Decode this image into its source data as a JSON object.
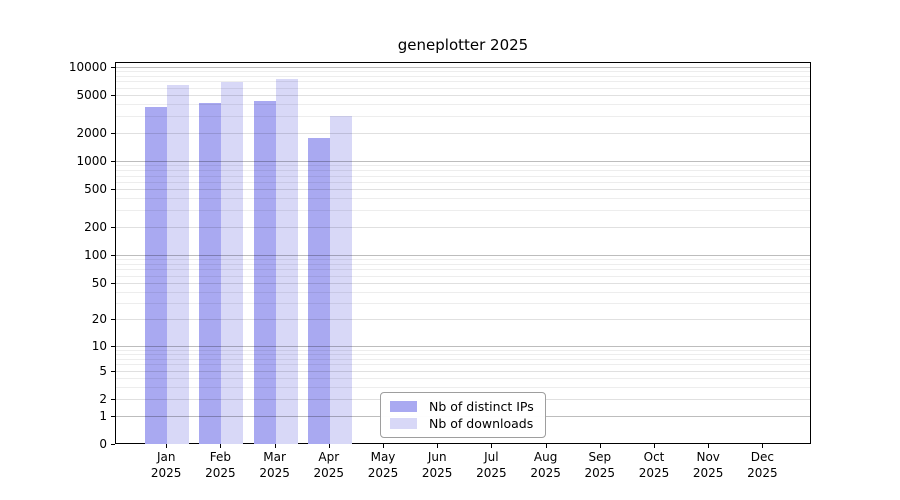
{
  "chart_data": {
    "type": "bar",
    "title": "geneplotter 2025",
    "categories": [
      "Jan",
      "Feb",
      "Mar",
      "Apr",
      "May",
      "Jun",
      "Jul",
      "Aug",
      "Sep",
      "Oct",
      "Nov",
      "Dec"
    ],
    "x_year": "2025",
    "series": [
      {
        "name": "Nb of distinct IPs",
        "color": "#a9a9f1",
        "values": [
          3800,
          4200,
          4450,
          1800,
          null,
          null,
          null,
          null,
          null,
          null,
          null,
          null
        ]
      },
      {
        "name": "Nb of downloads",
        "color": "#d8d8f7",
        "values": [
          6500,
          7100,
          7650,
          3100,
          null,
          null,
          null,
          null,
          null,
          null,
          null,
          null
        ]
      }
    ],
    "y_ticks": [
      10000,
      5000,
      2000,
      1000,
      500,
      200,
      100,
      50,
      20,
      10,
      5,
      2,
      1,
      0
    ],
    "scale": "log1p",
    "ylim": [
      0,
      10000
    ],
    "grid": true,
    "legend_position": "lower center inside"
  }
}
